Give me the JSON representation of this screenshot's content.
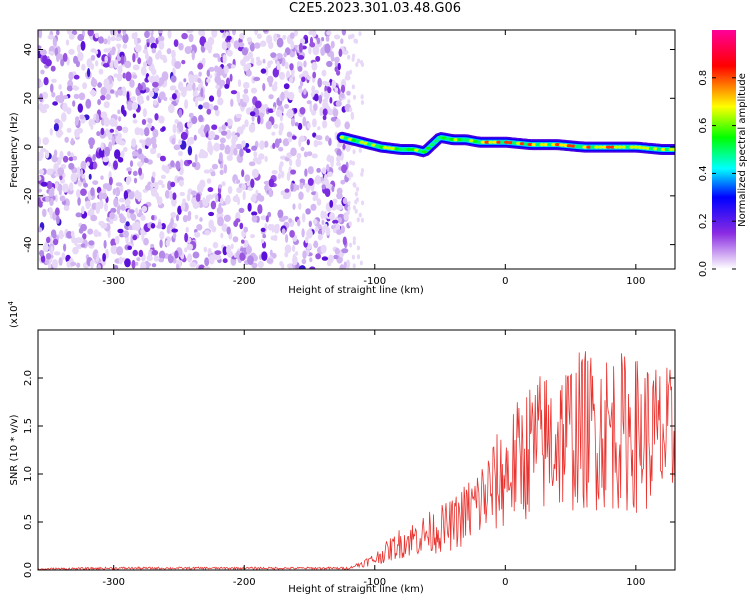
{
  "title": "C2E5.2023.301.03.48.G06",
  "chart_data": [
    {
      "type": "heatmap",
      "xlabel": "Height of straight line (km)",
      "ylabel": "Frequency (Hz)",
      "xlim": [
        -358,
        130
      ],
      "ylim": [
        -50,
        48
      ],
      "xticks": [
        -300,
        -200,
        -100,
        0,
        100
      ],
      "yticks": [
        -40,
        -20,
        0,
        20,
        40
      ],
      "noise_region": [
        -358,
        -120
      ],
      "signal_trace": {
        "x": [
          -125,
          -110,
          -95,
          -80,
          -70,
          -62,
          -50,
          -40,
          -30,
          -20,
          0,
          20,
          40,
          60,
          80,
          100,
          120,
          130
        ],
        "y": [
          4,
          2,
          0,
          -1,
          -1,
          -2,
          4,
          3,
          3,
          2,
          2,
          1,
          1,
          0,
          0,
          0,
          -1,
          -1
        ]
      },
      "colorbar": {
        "label": "Normalized spectral amplitude",
        "ticks": [
          "0.0",
          "0.2",
          "0.4",
          "0.6",
          "0.8"
        ],
        "range": [
          0,
          1
        ],
        "colors": [
          "#ffffff",
          "#d0b0f0",
          "#8a2be2",
          "#0000ff",
          "#00ffff",
          "#00ff00",
          "#ffff00",
          "#ff0000",
          "#ff00aa"
        ]
      }
    },
    {
      "type": "line",
      "xlabel": "Height of straight line (km)",
      "ylabel": "SNR (10 * v/v)",
      "multiplier": "(x10",
      "multiplier_exp": "4",
      "multiplier_close": ")",
      "xlim": [
        -358,
        130
      ],
      "ylim": [
        0,
        2.5
      ],
      "xticks": [
        -300,
        -200,
        -100,
        0,
        100
      ],
      "yticks": [
        "0.0",
        "0.5",
        "1.0",
        "1.5",
        "2.0"
      ],
      "series": [
        {
          "color": "#e8332f",
          "x": [
            -358,
            -300,
            -250,
            -200,
            -150,
            -120,
            -100,
            -80,
            -60,
            -40,
            -20,
            0,
            20,
            40,
            60,
            80,
            100,
            120,
            130
          ],
          "y": [
            0.01,
            0.02,
            0.02,
            0.02,
            0.02,
            0.02,
            0.12,
            0.3,
            0.4,
            0.5,
            0.75,
            1.05,
            1.35,
            1.45,
            1.55,
            1.55,
            1.5,
            1.45,
            1.4
          ]
        }
      ]
    }
  ]
}
